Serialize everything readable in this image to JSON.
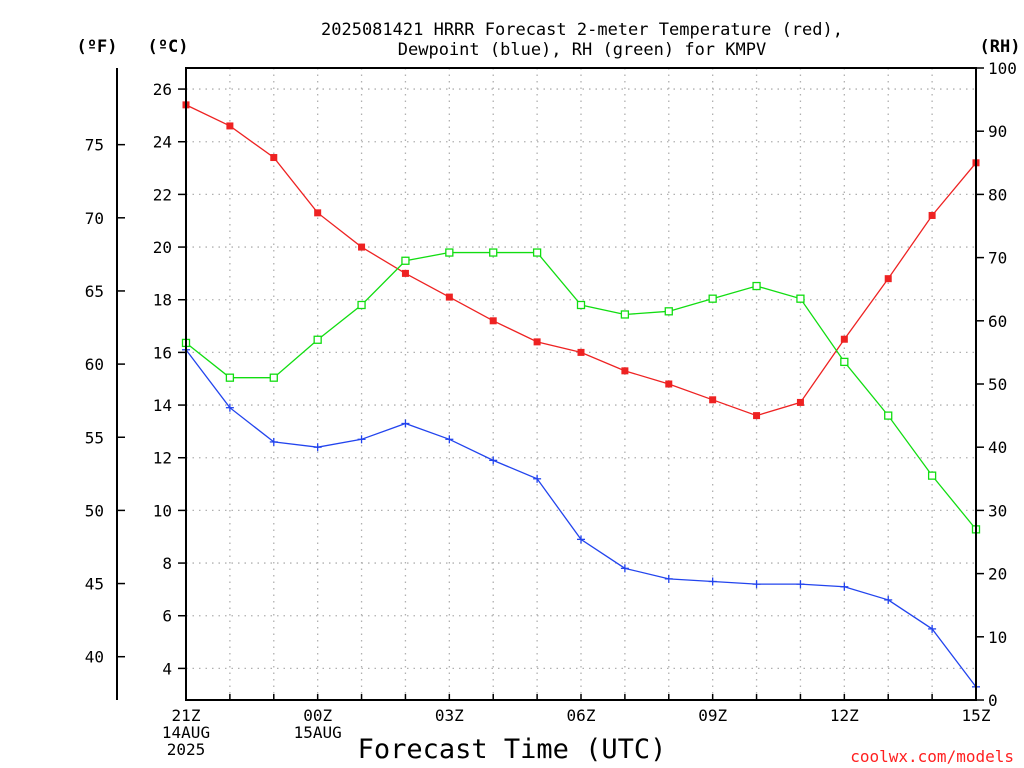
{
  "chart_data": {
    "type": "line",
    "title_line1": "2025081421 HRRR Forecast 2-meter Temperature (red),",
    "title_line2": "Dewpoint (blue), RH (green) for KMPV",
    "xlabel": "Forecast Time (UTC)",
    "credit": "coolwx.com/models",
    "unit_f": "(ºF)",
    "unit_c": "(ºC)",
    "unit_rh": "(RH)",
    "x": [
      0,
      1,
      2,
      3,
      4,
      5,
      6,
      7,
      8,
      9,
      10,
      11,
      12,
      13,
      14,
      15,
      16,
      17,
      18
    ],
    "x_ticks": [
      {
        "x": 0,
        "lines": [
          "21Z",
          "14AUG",
          "2025"
        ]
      },
      {
        "x": 3,
        "lines": [
          "00Z",
          "15AUG"
        ]
      },
      {
        "x": 6,
        "lines": [
          "03Z"
        ]
      },
      {
        "x": 9,
        "lines": [
          "06Z"
        ]
      },
      {
        "x": 12,
        "lines": [
          "09Z"
        ]
      },
      {
        "x": 15,
        "lines": [
          "12Z"
        ]
      },
      {
        "x": 18,
        "lines": [
          "15Z"
        ]
      }
    ],
    "xlim": [
      0,
      18
    ],
    "ylim_c": [
      2.8,
      26.8
    ],
    "ylim_rh": [
      0,
      100
    ],
    "y_ticks_c": [
      4,
      6,
      8,
      10,
      12,
      14,
      16,
      18,
      20,
      22,
      24,
      26
    ],
    "y_ticks_f": [
      40,
      45,
      50,
      55,
      60,
      65,
      70,
      75
    ],
    "y_ticks_rh": [
      0,
      10,
      20,
      30,
      40,
      50,
      60,
      70,
      80,
      90,
      100
    ],
    "grid": true,
    "series": [
      {
        "name": "Temperature",
        "axis": "c",
        "color": "#ee2222",
        "marker": "square-filled",
        "values": [
          25.4,
          24.6,
          23.4,
          21.3,
          20.0,
          19.0,
          18.1,
          17.2,
          16.4,
          16.0,
          15.3,
          14.8,
          14.2,
          13.6,
          14.1,
          16.5,
          18.8,
          21.2,
          23.2
        ]
      },
      {
        "name": "Dewpoint",
        "axis": "c",
        "color": "#2244ee",
        "marker": "plus",
        "values": [
          16.1,
          13.9,
          12.6,
          12.4,
          12.7,
          13.3,
          12.7,
          11.9,
          11.2,
          8.9,
          7.8,
          7.4,
          7.3,
          7.2,
          7.2,
          7.1,
          6.6,
          5.5,
          3.3
        ]
      },
      {
        "name": "RH",
        "axis": "rh",
        "color": "#11dd11",
        "marker": "square-open",
        "values": [
          56.5,
          51.0,
          51.0,
          57.0,
          62.5,
          69.5,
          70.8,
          70.8,
          70.8,
          62.5,
          61.0,
          61.5,
          63.5,
          65.5,
          63.5,
          53.5,
          45.0,
          35.5,
          27.0
        ]
      }
    ]
  }
}
